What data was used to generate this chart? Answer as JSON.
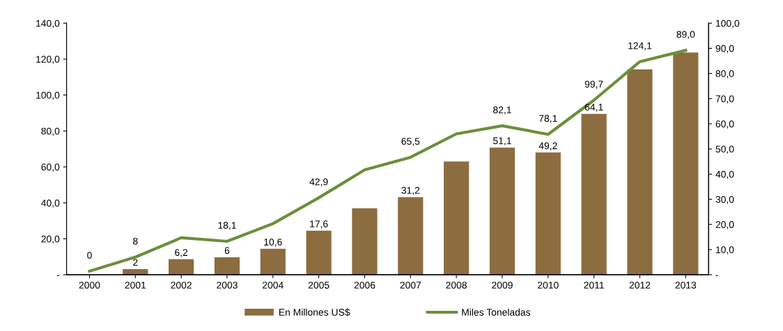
{
  "chart_data": {
    "type": "bar",
    "categories": [
      "2000",
      "2001",
      "2002",
      "2003",
      "2004",
      "2005",
      "2006",
      "2007",
      "2008",
      "2009",
      "2010",
      "2011",
      "2012",
      "2013"
    ],
    "series": [
      {
        "name": "En Millones US$",
        "color": "#8c6d3f",
        "values": [
          0,
          3.1,
          8.6,
          9.7,
          14.4,
          24.5,
          37,
          43.2,
          63,
          70.8,
          68,
          89.5,
          114.3,
          123.7
        ]
      },
      {
        "name": "Miles Toneladas",
        "type": "line",
        "axis": "y2",
        "color": "#6a8f3a",
        "values": [
          1.4,
          7,
          14.7,
          13.3,
          20.3,
          30.6,
          41.7,
          46.7,
          56,
          59.2,
          55.8,
          69.4,
          84.7,
          89.2
        ]
      }
    ],
    "ylim": [
      0,
      140
    ],
    "yticks": [
      {
        "value": 0,
        "label": "-"
      },
      {
        "value": 20,
        "label": "20,0"
      },
      {
        "value": 40,
        "label": "40,0"
      },
      {
        "value": 60,
        "label": "60,0"
      },
      {
        "value": 80,
        "label": "80,0"
      },
      {
        "value": 100,
        "label": "100,0"
      },
      {
        "value": 120,
        "label": "120,0"
      },
      {
        "value": 140,
        "label": "140,0"
      }
    ],
    "y2lim": [
      0,
      100
    ],
    "y2ticks": [
      {
        "value": 0,
        "label": "-"
      },
      {
        "value": 10,
        "label": "10,0"
      },
      {
        "value": 20,
        "label": "20,0"
      },
      {
        "value": 30,
        "label": "30,0"
      },
      {
        "value": 40,
        "label": "40,0"
      },
      {
        "value": 50,
        "label": "50,0"
      },
      {
        "value": 60,
        "label": "60,0"
      },
      {
        "value": 70,
        "label": "70,0"
      },
      {
        "value": 80,
        "label": "80,0"
      },
      {
        "value": 90,
        "label": "90,0"
      },
      {
        "value": 100,
        "label": "100,0"
      }
    ],
    "annotations": [
      {
        "text": "0",
        "x": "2000",
        "y": 1.96
      },
      {
        "text": "8",
        "x": "2001",
        "y": 9.8
      },
      {
        "text": "2",
        "x": "2001",
        "y": 3.1
      },
      {
        "text": "6,2",
        "x": "2002",
        "y": 8.6
      },
      {
        "text": "18,1",
        "x": "2003",
        "y": 18.62
      },
      {
        "text": "6",
        "x": "2003",
        "y": 9.7
      },
      {
        "text": "10,6",
        "x": "2004",
        "y": 14.4
      },
      {
        "text": "42,9",
        "x": "2005",
        "y": 42.84
      },
      {
        "text": "17,6",
        "x": "2005",
        "y": 24.5
      },
      {
        "text": "65,5",
        "x": "2007",
        "y": 65.38
      },
      {
        "text": "31,2",
        "x": "2007",
        "y": 43.2
      },
      {
        "text": "82,1",
        "x": "2009",
        "y": 82.88
      },
      {
        "text": "51,1",
        "x": "2009",
        "y": 70.8
      },
      {
        "text": "78,1",
        "x": "2010",
        "y": 78.12
      },
      {
        "text": "49,2",
        "x": "2010",
        "y": 68
      },
      {
        "text": "99,7",
        "x": "2011",
        "y": 97.16
      },
      {
        "text": "64,1",
        "x": "2011",
        "y": 89.5
      },
      {
        "text": "124,1",
        "x": "2012",
        "y": 118.58
      },
      {
        "text": "89,0",
        "x": "2013",
        "y": 124.88
      }
    ],
    "legend": "bottom",
    "grid": false,
    "marker": "none",
    "line_style": "solid"
  }
}
